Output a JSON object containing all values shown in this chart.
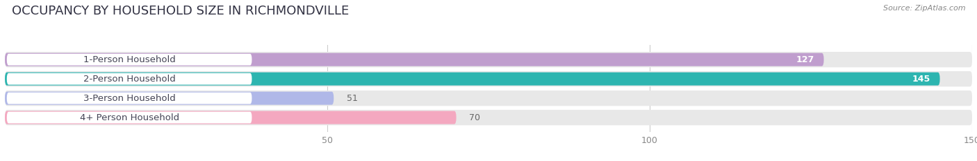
{
  "title": "OCCUPANCY BY HOUSEHOLD SIZE IN RICHMONDVILLE",
  "source": "Source: ZipAtlas.com",
  "categories": [
    "1-Person Household",
    "2-Person Household",
    "3-Person Household",
    "4+ Person Household"
  ],
  "values": [
    127,
    145,
    51,
    70
  ],
  "bar_colors": [
    "#c09ece",
    "#2db5b0",
    "#b0b8e8",
    "#f4a8c0"
  ],
  "xlim": [
    0,
    150
  ],
  "xticks": [
    50,
    100,
    150
  ],
  "background_color": "#ffffff",
  "bar_bg_color": "#e8e8e8",
  "title_fontsize": 13,
  "label_fontsize": 9.5,
  "value_fontsize": 9,
  "bar_height": 0.68
}
